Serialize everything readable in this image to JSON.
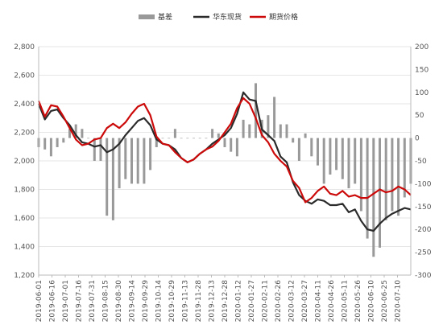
{
  "chart_data": {
    "type": "line",
    "title": "",
    "xlabel": "",
    "ylabel": "",
    "y_left": {
      "ylim": [
        1200,
        2800
      ],
      "ticks": [
        "1,200",
        "1,400",
        "1,600",
        "1,800",
        "2,000",
        "2,200",
        "2,400",
        "2,600",
        "2,800"
      ]
    },
    "y_right": {
      "ylim": [
        -300,
        200
      ],
      "ticks": [
        "-300",
        "-250",
        "-200",
        "-150",
        "-100",
        "-50",
        "0",
        "50",
        "100",
        "150",
        "200"
      ]
    },
    "x_ticks": [
      "2019-06-01",
      "2019-06-16",
      "2019-07-01",
      "2019-07-16",
      "2019-07-31",
      "2019-08-15",
      "2019-08-30",
      "2019-09-14",
      "2019-09-29",
      "2019-10-14",
      "2019-10-29",
      "2019-11-13",
      "2019-11-28",
      "2019-12-13",
      "2019-12-28",
      "2020-01-12",
      "2020-01-27",
      "2020-02-11",
      "2020-02-26",
      "2020-03-12",
      "2020-03-27",
      "2020-04-11",
      "2020-04-26",
      "2020-05-11",
      "2020-05-26",
      "2020-06-10",
      "2020-06-25",
      "2020-07-10"
    ],
    "x_range": [
      "2019-06-01",
      "2020-07-25"
    ],
    "grid": "horizontal",
    "legend_position": "top",
    "legend": [
      "基差",
      "华东现货",
      "期货价格"
    ],
    "colors": {
      "basis": "#999999",
      "spot": "#2b2b2b",
      "futures": "#cc0a0a"
    },
    "series": [
      {
        "name": "华东现货",
        "axis": "left",
        "x": [
          "2019-06-01",
          "2019-06-08",
          "2019-06-15",
          "2019-06-22",
          "2019-06-29",
          "2019-07-06",
          "2019-07-13",
          "2019-07-20",
          "2019-07-27",
          "2019-08-03",
          "2019-08-10",
          "2019-08-17",
          "2019-08-24",
          "2019-08-31",
          "2019-09-07",
          "2019-09-14",
          "2019-09-21",
          "2019-09-28",
          "2019-10-05",
          "2019-10-12",
          "2019-10-19",
          "2019-10-26",
          "2019-11-02",
          "2019-11-09",
          "2019-11-16",
          "2019-11-23",
          "2019-11-30",
          "2019-12-07",
          "2019-12-14",
          "2019-12-21",
          "2019-12-28",
          "2020-01-04",
          "2020-01-11",
          "2020-01-18",
          "2020-01-25",
          "2020-02-01",
          "2020-02-08",
          "2020-02-15",
          "2020-02-22",
          "2020-02-29",
          "2020-03-07",
          "2020-03-14",
          "2020-03-21",
          "2020-03-28",
          "2020-04-04",
          "2020-04-11",
          "2020-04-18",
          "2020-04-25",
          "2020-05-02",
          "2020-05-09",
          "2020-05-16",
          "2020-05-23",
          "2020-05-30",
          "2020-06-06",
          "2020-06-13",
          "2020-06-20",
          "2020-06-27",
          "2020-07-04",
          "2020-07-11",
          "2020-07-18",
          "2020-07-25"
        ],
        "values": [
          2400,
          2290,
          2350,
          2360,
          2300,
          2250,
          2180,
          2130,
          2120,
          2100,
          2110,
          2060,
          2080,
          2120,
          2180,
          2230,
          2280,
          2300,
          2250,
          2150,
          2120,
          2110,
          2080,
          2020,
          1990,
          2010,
          2050,
          2080,
          2120,
          2150,
          2180,
          2230,
          2330,
          2480,
          2430,
          2420,
          2220,
          2180,
          2140,
          2030,
          1990,
          1850,
          1760,
          1720,
          1700,
          1730,
          1720,
          1690,
          1690,
          1700,
          1640,
          1660,
          1580,
          1520,
          1510,
          1560,
          1600,
          1630,
          1650,
          1670,
          1660
        ]
      },
      {
        "name": "期货价格",
        "axis": "left",
        "x": [
          "2019-06-01",
          "2019-06-08",
          "2019-06-15",
          "2019-06-22",
          "2019-06-29",
          "2019-07-06",
          "2019-07-13",
          "2019-07-20",
          "2019-07-27",
          "2019-08-03",
          "2019-08-10",
          "2019-08-17",
          "2019-08-24",
          "2019-08-31",
          "2019-09-07",
          "2019-09-14",
          "2019-09-21",
          "2019-09-28",
          "2019-10-05",
          "2019-10-12",
          "2019-10-19",
          "2019-10-26",
          "2019-11-02",
          "2019-11-09",
          "2019-11-16",
          "2019-11-23",
          "2019-11-30",
          "2019-12-07",
          "2019-12-14",
          "2019-12-21",
          "2019-12-28",
          "2020-01-04",
          "2020-01-11",
          "2020-01-18",
          "2020-01-25",
          "2020-02-01",
          "2020-02-08",
          "2020-02-15",
          "2020-02-22",
          "2020-02-29",
          "2020-03-07",
          "2020-03-14",
          "2020-03-21",
          "2020-03-28",
          "2020-04-04",
          "2020-04-11",
          "2020-04-18",
          "2020-04-25",
          "2020-05-02",
          "2020-05-09",
          "2020-05-16",
          "2020-05-23",
          "2020-05-30",
          "2020-06-06",
          "2020-06-13",
          "2020-06-20",
          "2020-06-27",
          "2020-07-04",
          "2020-07-11",
          "2020-07-18",
          "2020-07-25"
        ],
        "values": [
          2420,
          2310,
          2390,
          2380,
          2310,
          2230,
          2150,
          2110,
          2120,
          2150,
          2160,
          2230,
          2260,
          2230,
          2270,
          2330,
          2380,
          2400,
          2320,
          2170,
          2120,
          2110,
          2060,
          2020,
          1990,
          2010,
          2050,
          2080,
          2100,
          2140,
          2200,
          2260,
          2370,
          2440,
          2400,
          2300,
          2180,
          2130,
          2050,
          2000,
          1960,
          1860,
          1810,
          1710,
          1740,
          1790,
          1820,
          1770,
          1760,
          1790,
          1750,
          1760,
          1740,
          1740,
          1770,
          1800,
          1780,
          1790,
          1820,
          1800,
          1760
        ]
      },
      {
        "name": "基差",
        "axis": "right",
        "x": [
          "2019-06-01",
          "2019-06-08",
          "2019-06-15",
          "2019-06-22",
          "2019-06-29",
          "2019-07-06",
          "2019-07-13",
          "2019-07-20",
          "2019-07-27",
          "2019-08-03",
          "2019-08-10",
          "2019-08-17",
          "2019-08-24",
          "2019-08-31",
          "2019-09-07",
          "2019-09-14",
          "2019-09-21",
          "2019-09-28",
          "2019-10-05",
          "2019-10-12",
          "2019-10-19",
          "2019-10-26",
          "2019-11-02",
          "2019-11-09",
          "2019-11-16",
          "2019-11-23",
          "2019-11-30",
          "2019-12-07",
          "2019-12-14",
          "2019-12-21",
          "2019-12-28",
          "2020-01-04",
          "2020-01-11",
          "2020-01-18",
          "2020-01-25",
          "2020-02-01",
          "2020-02-08",
          "2020-02-15",
          "2020-02-22",
          "2020-02-29",
          "2020-03-07",
          "2020-03-14",
          "2020-03-21",
          "2020-03-28",
          "2020-04-04",
          "2020-04-11",
          "2020-04-18",
          "2020-04-25",
          "2020-05-02",
          "2020-05-09",
          "2020-05-16",
          "2020-05-23",
          "2020-05-30",
          "2020-06-06",
          "2020-06-13",
          "2020-06-20",
          "2020-06-27",
          "2020-07-04",
          "2020-07-11",
          "2020-07-18",
          "2020-07-25"
        ],
        "values": [
          -20,
          -25,
          -40,
          -20,
          -10,
          20,
          30,
          20,
          0,
          -50,
          -50,
          -170,
          -180,
          -110,
          -90,
          -100,
          -100,
          -100,
          -70,
          -20,
          0,
          0,
          20,
          0,
          0,
          0,
          0,
          0,
          20,
          10,
          -20,
          -30,
          -40,
          40,
          30,
          120,
          40,
          50,
          90,
          30,
          30,
          -10,
          -50,
          10,
          -40,
          -60,
          -100,
          -80,
          -70,
          -90,
          -110,
          -100,
          -160,
          -220,
          -260,
          -240,
          -180,
          -160,
          -170,
          -130,
          -100
        ]
      }
    ]
  }
}
